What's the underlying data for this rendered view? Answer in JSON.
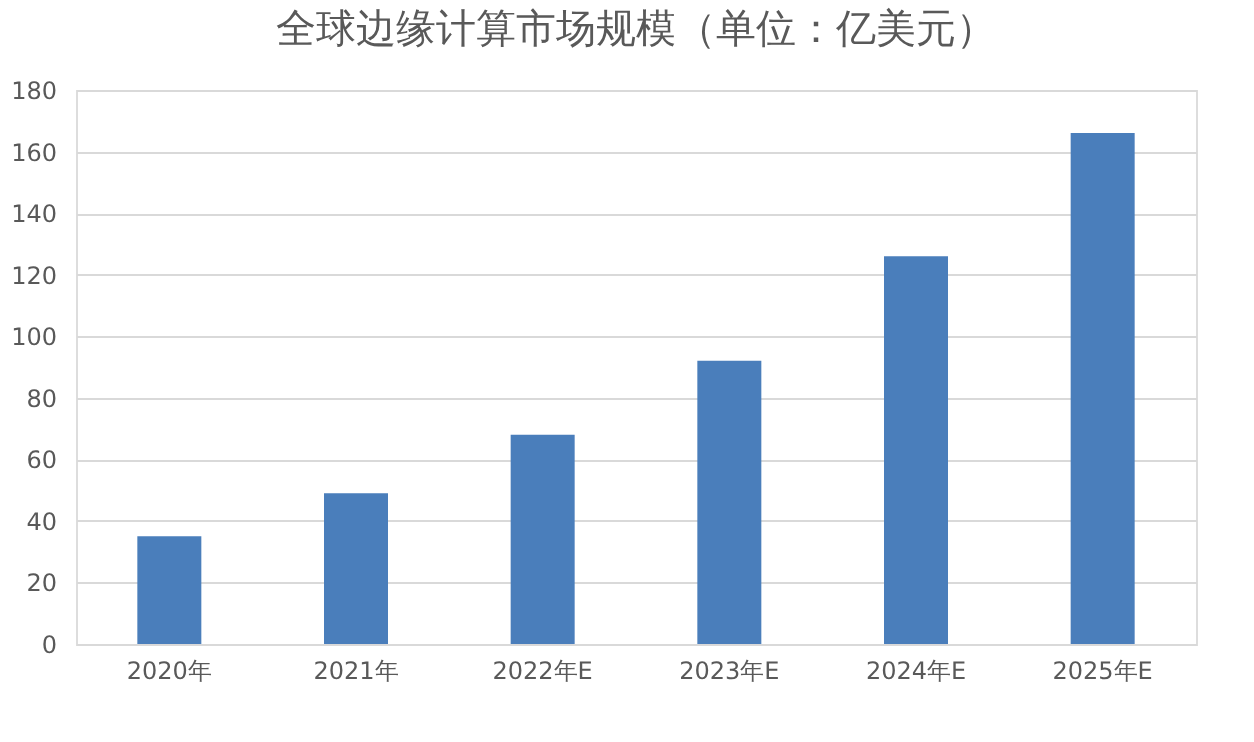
{
  "chart_data": {
    "type": "bar",
    "title": "全球边缘计算市场规模（单位：亿美元）",
    "categories": [
      "2020年",
      "2021年",
      "2022年E",
      "2023年E",
      "2024年E",
      "2025年E"
    ],
    "values": [
      35,
      49,
      68,
      92,
      126,
      166
    ],
    "color": "#4a7ebb",
    "ylim": [
      0,
      180
    ],
    "yticks": [
      0,
      20,
      40,
      60,
      80,
      100,
      120,
      140,
      160,
      180
    ],
    "grid": "y"
  }
}
